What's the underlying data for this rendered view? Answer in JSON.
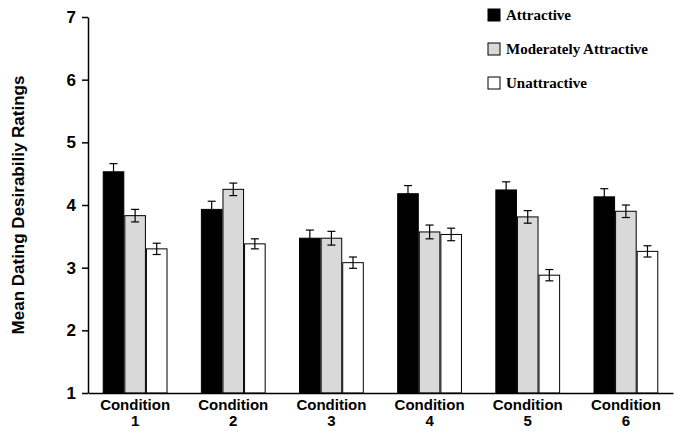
{
  "chart_data": {
    "type": "bar",
    "y_label": "Mean Dating Desirabiliy Ratings",
    "categories": [
      "Condition 1",
      "Condition 2",
      "Condition 3",
      "Condition 4",
      "Condition 5",
      "Condition 6"
    ],
    "series": [
      {
        "name": "Attractive",
        "color": "#000000",
        "values": [
          4.53,
          3.93,
          3.47,
          4.18,
          4.24,
          4.13
        ],
        "errors": [
          0.13,
          0.13,
          0.13,
          0.13,
          0.13,
          0.13
        ]
      },
      {
        "name": "Moderately Attractive",
        "color": "#d9d9d9",
        "values": [
          3.83,
          4.25,
          3.47,
          3.57,
          3.81,
          3.9
        ],
        "errors": [
          0.1,
          0.1,
          0.11,
          0.11,
          0.1,
          0.1
        ]
      },
      {
        "name": "Unattractive",
        "color": "#ffffff",
        "values": [
          3.3,
          3.38,
          3.08,
          3.53,
          2.88,
          3.26
        ],
        "errors": [
          0.09,
          0.08,
          0.09,
          0.1,
          0.09,
          0.09
        ]
      }
    ],
    "ylim": [
      1,
      7
    ],
    "yticks": [
      1,
      2,
      3,
      4,
      5,
      6,
      7
    ],
    "grid": false,
    "legend": "top-right"
  }
}
